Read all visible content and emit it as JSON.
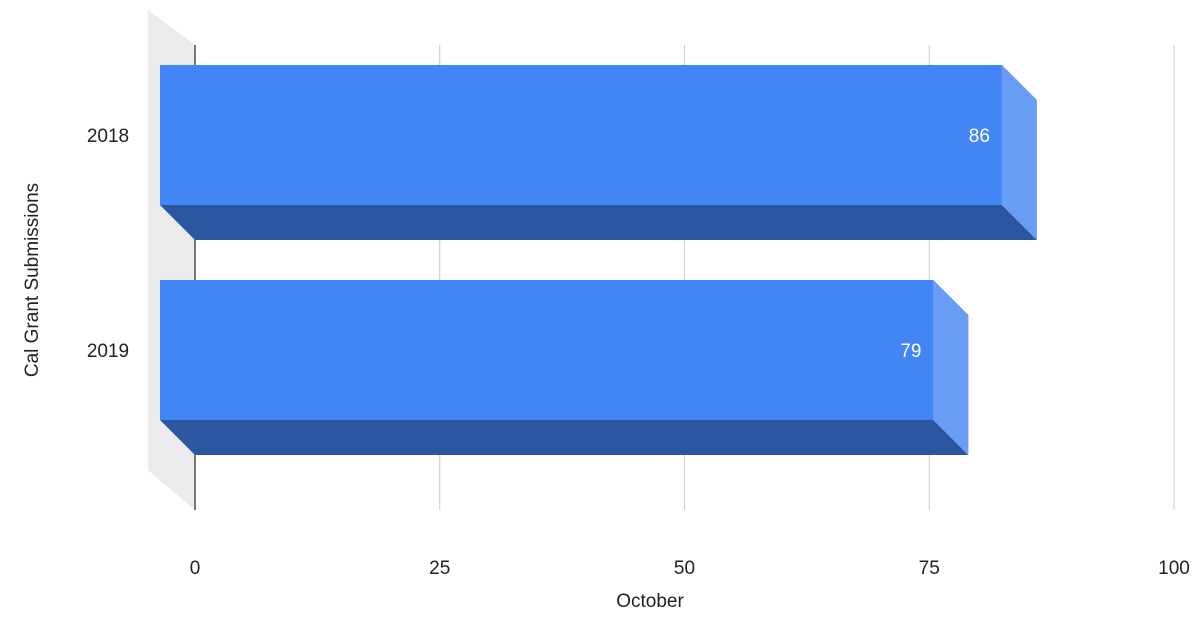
{
  "chart_data": {
    "type": "bar",
    "orientation": "horizontal",
    "three_d": true,
    "categories": [
      "2018",
      "2019"
    ],
    "values": [
      86,
      79
    ],
    "data_labels": [
      "86",
      "79"
    ],
    "xlabel": "October",
    "ylabel": "Cal Grant Submissions",
    "xlim": [
      0,
      100
    ],
    "xticks": [
      "0",
      "25",
      "50",
      "75",
      "100"
    ],
    "grid": true,
    "legend": "none",
    "colors": {
      "bar_front": "#4285f4",
      "bar_bottom": "#2b56a0",
      "bar_side": "#6a9ef6",
      "wall": "#ebebeb",
      "grid": "#cccccc",
      "zero_line": "#333333"
    }
  }
}
